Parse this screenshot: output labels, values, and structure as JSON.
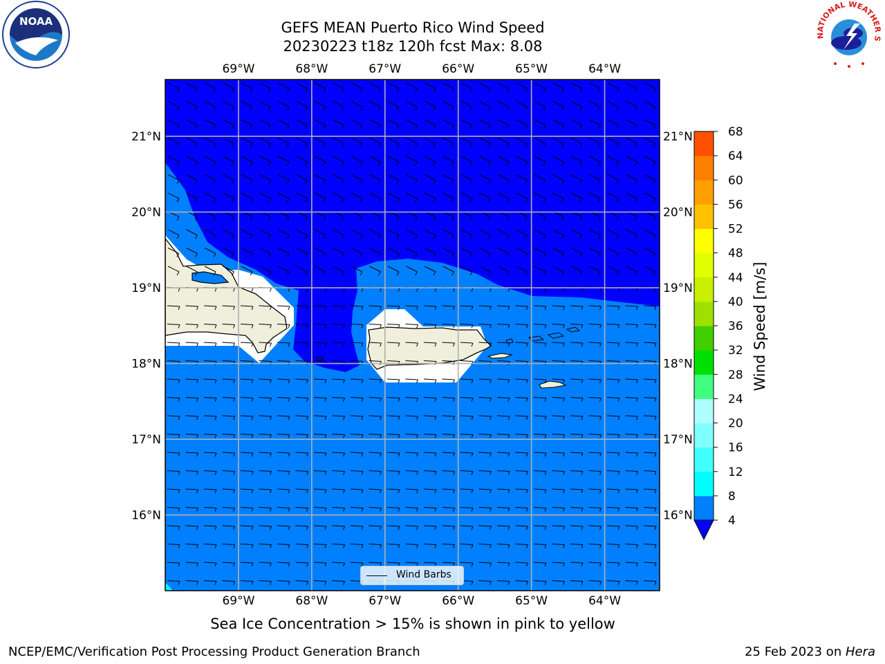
{
  "title": {
    "line1": "GEFS MEAN Puerto Rico Wind Speed",
    "line2": "20230223 t18z 120h fcst   Max: 8.08"
  },
  "map": {
    "lon_ticks": [
      "69°W",
      "68°W",
      "67°W",
      "66°W",
      "65°W",
      "64°W"
    ],
    "lat_ticks": [
      "21°N",
      "20°N",
      "19°N",
      "18°N",
      "17°N",
      "16°N"
    ],
    "lon_range": [
      -70.0,
      -63.25
    ],
    "lat_range": [
      15.0,
      21.75
    ],
    "legend_label": "Wind Barbs",
    "colors": {
      "wind_0_4": "#0000ff",
      "wind_4_8": "#0080ff",
      "land": "#efefdc",
      "grid": "#b0b0b0"
    }
  },
  "colorbar": {
    "label": "Wind Speed [m/s]",
    "ticks": [
      "4",
      "8",
      "12",
      "16",
      "20",
      "24",
      "28",
      "32",
      "36",
      "40",
      "44",
      "48",
      "52",
      "56",
      "60",
      "64",
      "68"
    ],
    "colors": [
      "#0080ff",
      "#00ffff",
      "#40ffff",
      "#80ffff",
      "#b0ffff",
      "#40ff80",
      "#00e000",
      "#40d000",
      "#a0e000",
      "#c8f000",
      "#e0ff00",
      "#ffff00",
      "#ffc000",
      "#ffa000",
      "#ff8000",
      "#ff5000",
      "#ff2000"
    ],
    "under_color": "#0000ff"
  },
  "caption": "Sea Ice Concentration > 15% is shown in pink to yellow",
  "footer": {
    "left": "NCEP/EMC/Verification Post Processing Product Generation Branch",
    "right_date": "25 Feb 2023 on ",
    "right_machine": "Hera"
  },
  "logos": {
    "noaa_text": "NOAA",
    "nws_ring_text": "NATIONAL WEATHER SERVICE"
  }
}
